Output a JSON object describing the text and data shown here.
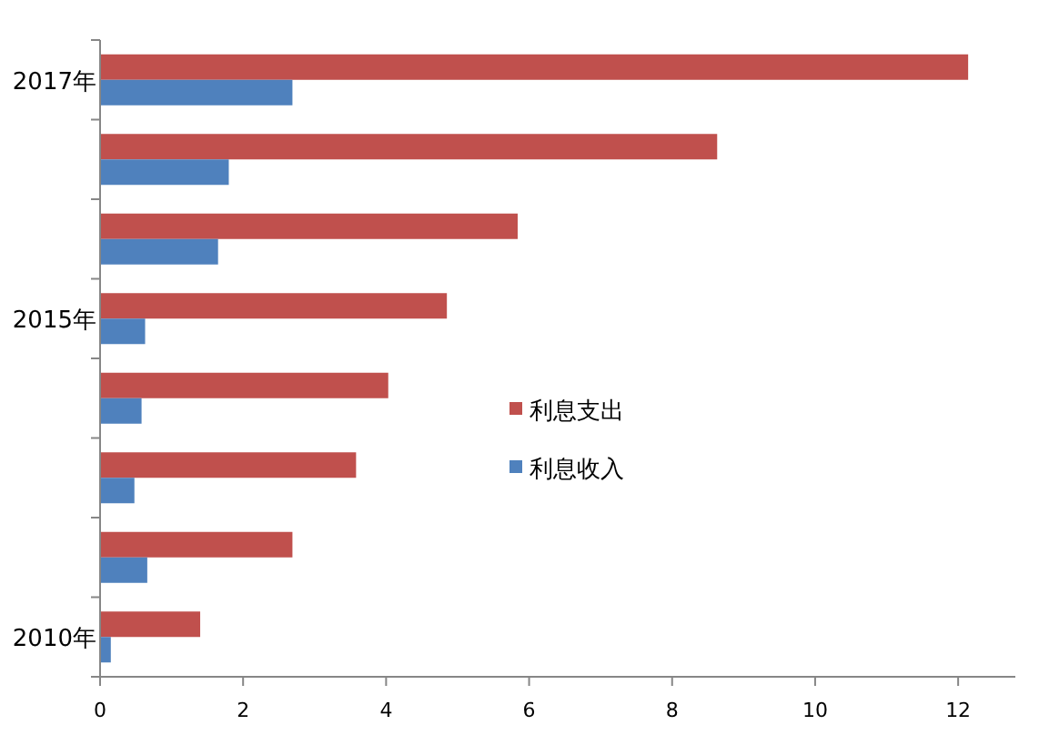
{
  "chart_data": {
    "type": "bar",
    "orientation": "horizontal",
    "categories": [
      "2017年",
      null,
      null,
      "2015年",
      null,
      null,
      null,
      "2010年"
    ],
    "series": [
      {
        "name": "利息支出",
        "color": "#c0504d",
        "values": [
          12.14,
          8.63,
          5.84,
          4.85,
          4.03,
          3.58,
          2.69,
          1.4
        ]
      },
      {
        "name": "利息收入",
        "color": "#4f81bd",
        "values": [
          2.69,
          1.8,
          1.65,
          0.63,
          0.58,
          0.48,
          0.66,
          0.15
        ]
      }
    ],
    "xlim": [
      0,
      12.8
    ],
    "xticks": [
      0,
      2,
      4,
      6,
      8,
      10,
      12
    ],
    "legend": "center"
  }
}
